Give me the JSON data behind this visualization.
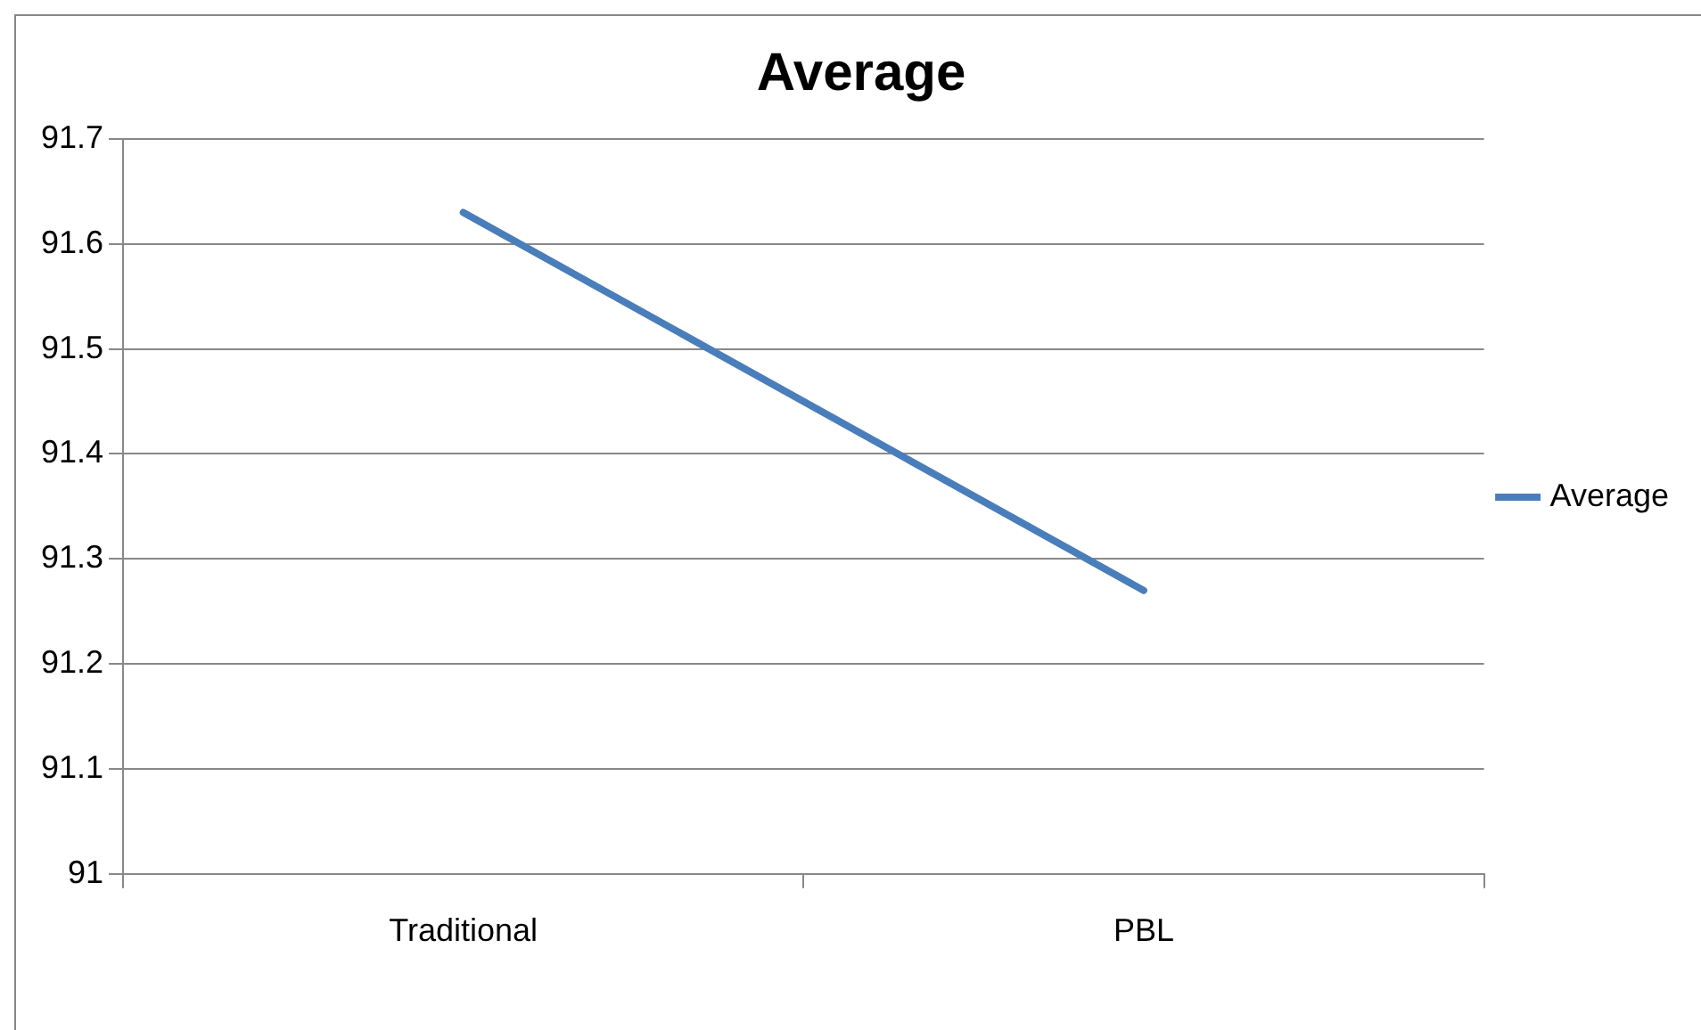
{
  "chart_data": {
    "type": "line",
    "title": "Average",
    "categories": [
      "Traditional",
      "PBL"
    ],
    "series": [
      {
        "name": "Average",
        "color": "#4a7ebb",
        "values": [
          91.63,
          91.27
        ]
      }
    ],
    "ylim": [
      91,
      91.7
    ],
    "yticks": [
      91,
      91.1,
      91.2,
      91.3,
      91.4,
      91.5,
      91.6,
      91.7
    ],
    "grid": "y",
    "legend": "right",
    "marker": "none",
    "line_style": "solid"
  }
}
